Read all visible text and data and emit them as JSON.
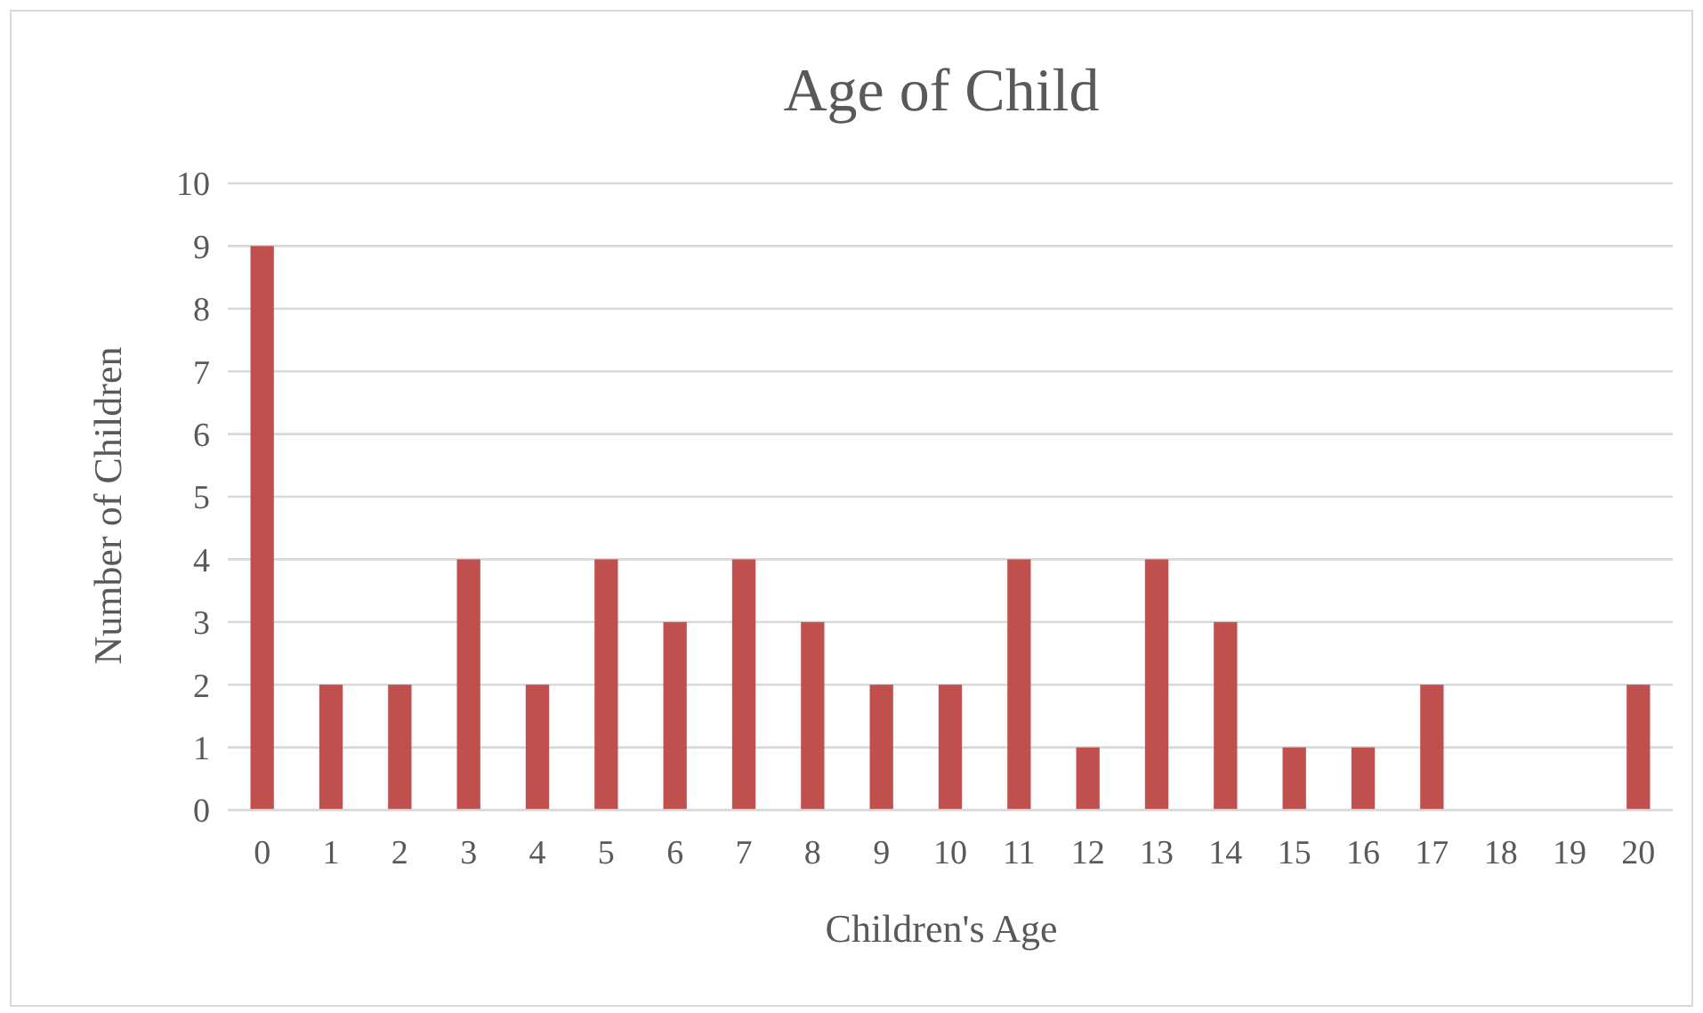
{
  "chart_data": {
    "type": "bar",
    "title": "Age of Child",
    "xlabel": "Children's Age",
    "ylabel": "Number of Children",
    "categories": [
      "0",
      "1",
      "2",
      "3",
      "4",
      "5",
      "6",
      "7",
      "8",
      "9",
      "10",
      "11",
      "12",
      "13",
      "14",
      "15",
      "16",
      "17",
      "18",
      "19",
      "20"
    ],
    "values": [
      9,
      2,
      2,
      4,
      2,
      4,
      3,
      4,
      3,
      2,
      2,
      4,
      1,
      4,
      3,
      1,
      1,
      2,
      0,
      0,
      2
    ],
    "color": "#c0504d",
    "ylim": [
      0,
      10
    ],
    "yticks": [
      0,
      1,
      2,
      3,
      4,
      5,
      6,
      7,
      8,
      9,
      10
    ],
    "grid": "y",
    "legend": false
  }
}
